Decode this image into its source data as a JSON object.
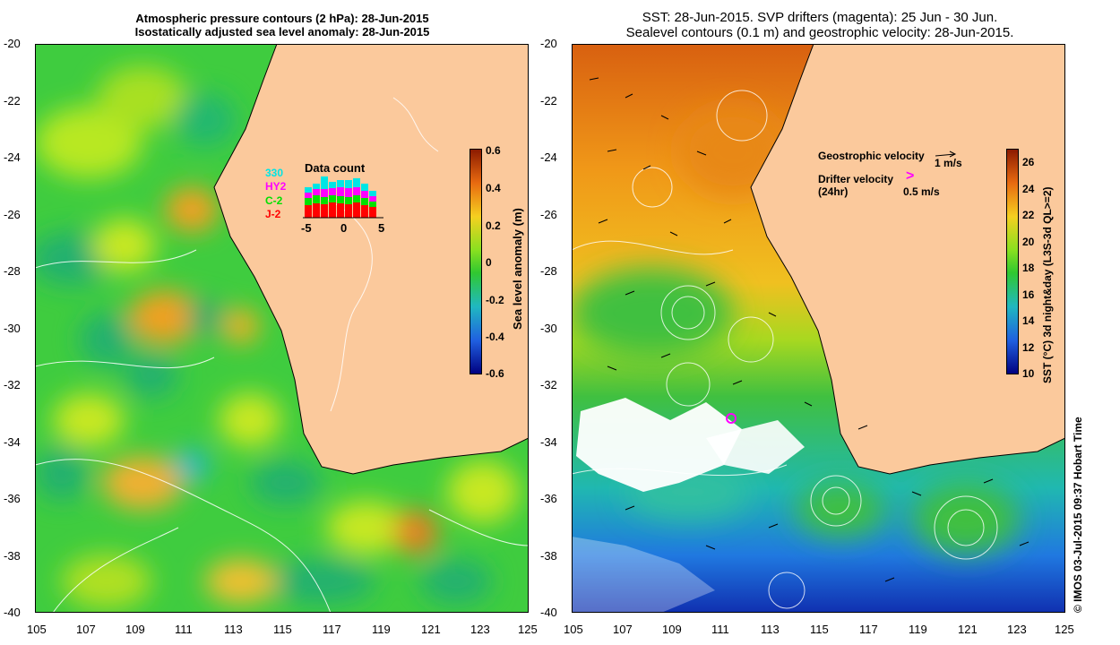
{
  "left_panel": {
    "title_line1": "Atmospheric pressure contours (2 hPa): 28-Jun-2015",
    "title_line2": "Isostatically adjusted sea level anomaly: 28-Jun-2015",
    "y_ticks": [
      "-20",
      "-22",
      "-24",
      "-26",
      "-28",
      "-30",
      "-32",
      "-34",
      "-36",
      "-38",
      "-40"
    ],
    "x_ticks": [
      "105",
      "107",
      "109",
      "111",
      "113",
      "115",
      "117",
      "119",
      "121",
      "123",
      "125"
    ],
    "colorbar": {
      "label": "Sea level anomaly (m)",
      "ticks": [
        "0.6",
        "0.4",
        "0.2",
        "0",
        "-0.2",
        "-0.4",
        "-0.6"
      ],
      "range": [
        -0.6,
        0.6
      ]
    },
    "data_count": {
      "title": "Data count",
      "legend": [
        {
          "name": "330",
          "color": "#00e5e5"
        },
        {
          "name": "HY2",
          "color": "#ff00ff"
        },
        {
          "name": "C-2",
          "color": "#00e000"
        },
        {
          "name": "J-2",
          "color": "#ff0000"
        }
      ],
      "x_ticks": [
        "-5",
        "0",
        "5"
      ]
    }
  },
  "right_panel": {
    "title_line1": "SST: 28-Jun-2015. SVP drifters (magenta): 25 Jun - 30 Jun.",
    "title_line2": "Sealevel contours (0.1 m) and geostrophic velocity: 28-Jun-2015.",
    "y_ticks": [
      "-20",
      "-22",
      "-24",
      "-26",
      "-28",
      "-30",
      "-32",
      "-34",
      "-36",
      "-38",
      "-40"
    ],
    "x_ticks": [
      "105",
      "107",
      "109",
      "111",
      "113",
      "115",
      "117",
      "119",
      "121",
      "123",
      "125"
    ],
    "legend": {
      "geostrophic": "Geostrophic velocity",
      "geostrophic_scale": "1 m/s",
      "drifter": "Drifter velocity",
      "drifter_sub": "(24hr)",
      "drifter_scale": "0.5 m/s"
    },
    "colorbar": {
      "label": "SST (°C) 3d night&day (L3S-3d QL>=2)",
      "ticks": [
        "26",
        "24",
        "22",
        "20",
        "18",
        "16",
        "14",
        "12",
        "10"
      ],
      "range": [
        10,
        27
      ]
    }
  },
  "credit": "© IMOS 03-Jul-2015 09:37 Hobart Time",
  "colors": {
    "land": "#fbc99c",
    "sla_green": "#35cc35",
    "sst_orange": "#e07a10",
    "drifter": "#ff00ff"
  }
}
